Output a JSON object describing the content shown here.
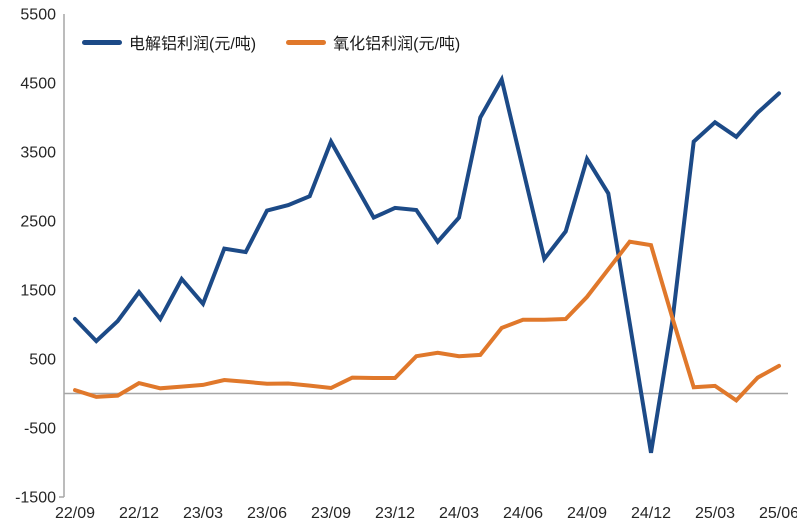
{
  "chart_data": {
    "type": "line",
    "title": "",
    "xlabel": "",
    "ylabel": "",
    "categories": [
      "22/09",
      "22/10",
      "22/11",
      "22/12",
      "23/01",
      "23/02",
      "23/03",
      "23/04",
      "23/05",
      "23/06",
      "23/07",
      "23/08",
      "23/09",
      "23/10",
      "23/11",
      "23/12",
      "24/01",
      "24/02",
      "24/03",
      "24/04",
      "24/05",
      "24/06",
      "24/07",
      "24/08",
      "24/09",
      "24/10",
      "24/11",
      "24/12",
      "25/01",
      "25/02",
      "25/03",
      "25/04",
      "25/05",
      "25/06"
    ],
    "x_tick_labels": [
      "22/09",
      "22/12",
      "23/03",
      "23/06",
      "23/09",
      "23/12",
      "24/03",
      "24/06",
      "24/09",
      "24/12",
      "25/03",
      "25/06"
    ],
    "x_tick_every": 3,
    "series": [
      {
        "name": "电解铝利润(元/吨)",
        "color": "#1C4A87",
        "values": [
          1080,
          760,
          1050,
          1470,
          1080,
          1660,
          1300,
          2100,
          2050,
          2650,
          2730,
          2860,
          3650,
          3100,
          2550,
          2690,
          2660,
          2200,
          2550,
          4000,
          4550,
          3250,
          1950,
          2350,
          3400,
          2900,
          1020,
          -860,
          1040,
          3650,
          3930,
          3720,
          4070,
          4350
        ]
      },
      {
        "name": "氧化铝利润(元/吨)",
        "color": "#E0782B",
        "values": [
          50,
          -50,
          -30,
          150,
          75,
          100,
          125,
          195,
          170,
          140,
          145,
          115,
          80,
          230,
          225,
          225,
          540,
          590,
          540,
          560,
          950,
          1070,
          1070,
          1080,
          1400,
          1800,
          2200,
          2150,
          1100,
          90,
          110,
          -100,
          230,
          400
        ]
      }
    ],
    "ylim": [
      -1500,
      5500
    ],
    "y_tick_step": 1000,
    "y_tick_labels": [
      "5500",
      "4500",
      "3500",
      "2500",
      "1500",
      "500",
      "-500",
      "-1500"
    ],
    "grid": "zero-line-only",
    "legend_position": "top-left",
    "axis_color": "#A6A6A6",
    "tick_label_color": "#262626"
  }
}
